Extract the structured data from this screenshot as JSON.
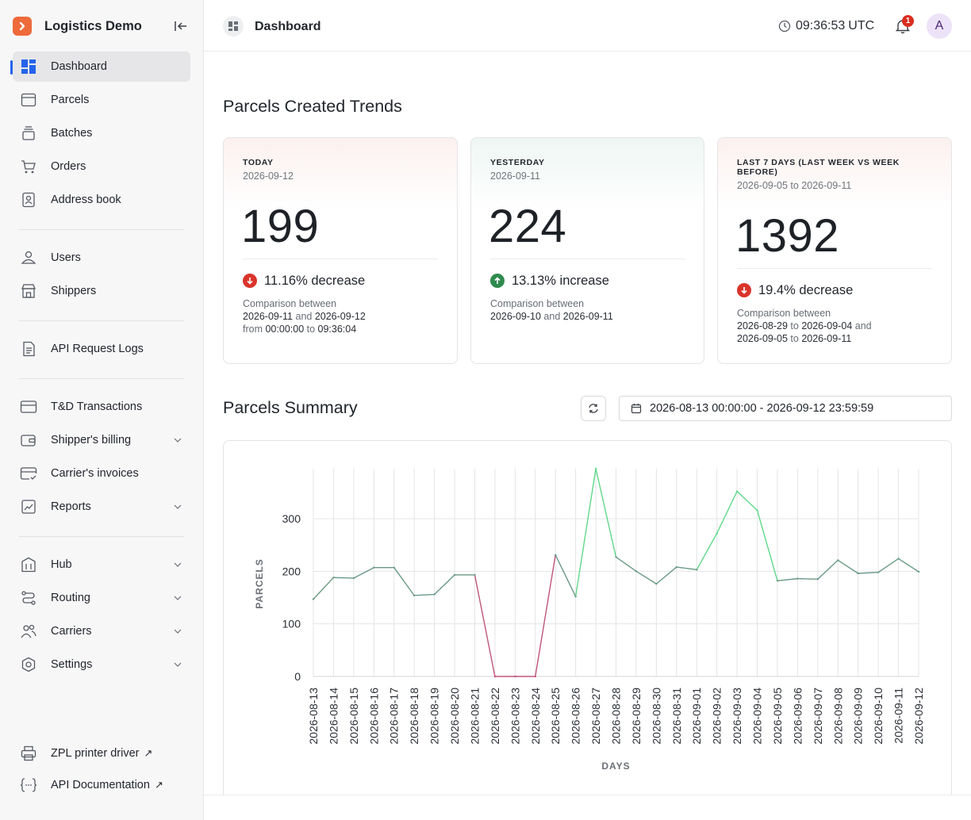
{
  "brand": {
    "name": "Logistics Demo"
  },
  "sidebar": {
    "items": [
      {
        "name": "dashboard",
        "label": "Dashboard",
        "icon": "dashboard-icon",
        "active": true
      },
      {
        "name": "parcels",
        "label": "Parcels",
        "icon": "box-icon"
      },
      {
        "name": "batches",
        "label": "Batches",
        "icon": "stack-icon"
      },
      {
        "name": "orders",
        "label": "Orders",
        "icon": "cart-icon"
      },
      {
        "name": "address-book",
        "label": "Address book",
        "icon": "contact-book-icon"
      },
      {
        "name": "users",
        "label": "Users",
        "icon": "users-icon"
      },
      {
        "name": "shippers",
        "label": "Shippers",
        "icon": "store-icon"
      },
      {
        "name": "api-request-logs",
        "label": "API Request Logs",
        "icon": "document-icon"
      },
      {
        "name": "td-transactions",
        "label": "T&D Transactions",
        "icon": "card-icon"
      },
      {
        "name": "shippers-billing",
        "label": "Shipper's billing",
        "icon": "wallet-icon",
        "expandable": true
      },
      {
        "name": "carriers-invoices",
        "label": "Carrier's invoices",
        "icon": "invoice-card-icon"
      },
      {
        "name": "reports",
        "label": "Reports",
        "icon": "chart-icon",
        "expandable": true
      },
      {
        "name": "hub",
        "label": "Hub",
        "icon": "building-icon",
        "expandable": true
      },
      {
        "name": "routing",
        "label": "Routing",
        "icon": "route-icon",
        "expandable": true
      },
      {
        "name": "carriers",
        "label": "Carriers",
        "icon": "people-icon",
        "expandable": true
      },
      {
        "name": "settings",
        "label": "Settings",
        "icon": "gear-icon",
        "expandable": true
      }
    ],
    "external": [
      {
        "name": "zpl-printer-driver",
        "label": "ZPL printer driver",
        "icon": "printer-icon",
        "arrow": "↗"
      },
      {
        "name": "api-documentation",
        "label": "API Documentation",
        "icon": "braces-icon",
        "arrow": "↗"
      }
    ]
  },
  "header": {
    "title": "Dashboard",
    "time": "09:36:53",
    "timezone": "UTC",
    "notification_count": "1",
    "avatar_initial": "A"
  },
  "trends": {
    "title": "Parcels Created Trends",
    "cards": [
      {
        "label": "TODAY",
        "date": "2026-09-12",
        "value": "199",
        "direction": "down",
        "change": "11.16% decrease",
        "cmp_intro": "Comparison between",
        "cmp": [
          {
            "t": "2026-09-11",
            "dim": false
          },
          {
            "t": " and ",
            "dim": true
          },
          {
            "t": "2026-09-12",
            "dim": false
          },
          {
            "t": "\n",
            "dim": true
          },
          {
            "t": "from ",
            "dim": true
          },
          {
            "t": "00:00:00",
            "dim": false
          },
          {
            "t": " to ",
            "dim": true
          },
          {
            "t": "09:36:04",
            "dim": false
          }
        ]
      },
      {
        "label": "YESTERDAY",
        "date": "2026-09-11",
        "value": "224",
        "direction": "up",
        "change": "13.13% increase",
        "cmp_intro": "Comparison between",
        "cmp": [
          {
            "t": "2026-09-10",
            "dim": false
          },
          {
            "t": " and ",
            "dim": true
          },
          {
            "t": "2026-09-11",
            "dim": false
          }
        ]
      },
      {
        "label": "LAST 7 DAYS (LAST WEEK VS WEEK BEFORE)",
        "date": "2026-09-05 to 2026-09-11",
        "value": "1392",
        "direction": "down",
        "change": "19.4% decrease",
        "cmp_intro": "Comparison between",
        "cmp": [
          {
            "t": "2026-08-29",
            "dim": false
          },
          {
            "t": " to ",
            "dim": true
          },
          {
            "t": "2026-09-04",
            "dim": false
          },
          {
            "t": " and",
            "dim": true
          },
          {
            "t": "\n",
            "dim": true
          },
          {
            "t": "2026-09-05",
            "dim": false
          },
          {
            "t": " to ",
            "dim": true
          },
          {
            "t": "2026-09-11",
            "dim": false
          }
        ]
      }
    ]
  },
  "summary": {
    "title": "Parcels Summary",
    "date_range": "2026-08-13 00:00:00 - 2026-09-12 23:59:59"
  },
  "colors": {
    "accent": "#ee6a3a",
    "active_indicator": "#2563eb",
    "decrease": "#d9342b",
    "increase": "#2f8a4e",
    "line_normal": "#6a9a84",
    "line_high": "#5fd88a",
    "line_zero": "#c0567a"
  },
  "chart_data": {
    "type": "line",
    "xlabel": "DAYS",
    "ylabel": "PARCELS",
    "ylim": [
      0,
      395
    ],
    "yticks": [
      0,
      100,
      200,
      300
    ],
    "grid": true,
    "x": [
      "2026-08-13",
      "2026-08-14",
      "2026-08-15",
      "2026-08-16",
      "2026-08-17",
      "2026-08-18",
      "2026-08-19",
      "2026-08-20",
      "2026-08-21",
      "2026-08-22",
      "2026-08-23",
      "2026-08-24",
      "2026-08-25",
      "2026-08-26",
      "2026-08-27",
      "2026-08-28",
      "2026-08-29",
      "2026-08-30",
      "2026-08-31",
      "2026-09-01",
      "2026-09-02",
      "2026-09-03",
      "2026-09-04",
      "2026-09-05",
      "2026-09-06",
      "2026-09-07",
      "2026-09-08",
      "2026-09-09",
      "2026-09-10",
      "2026-09-11",
      "2026-09-12"
    ],
    "series": [
      {
        "values": [
          147,
          188,
          187,
          207,
          207,
          154,
          156,
          193,
          193,
          0,
          0,
          0,
          231,
          152,
          395,
          227,
          200,
          176,
          208,
          203,
          272,
          352,
          316,
          182,
          186,
          185,
          221,
          196,
          198,
          224,
          199
        ]
      }
    ]
  }
}
